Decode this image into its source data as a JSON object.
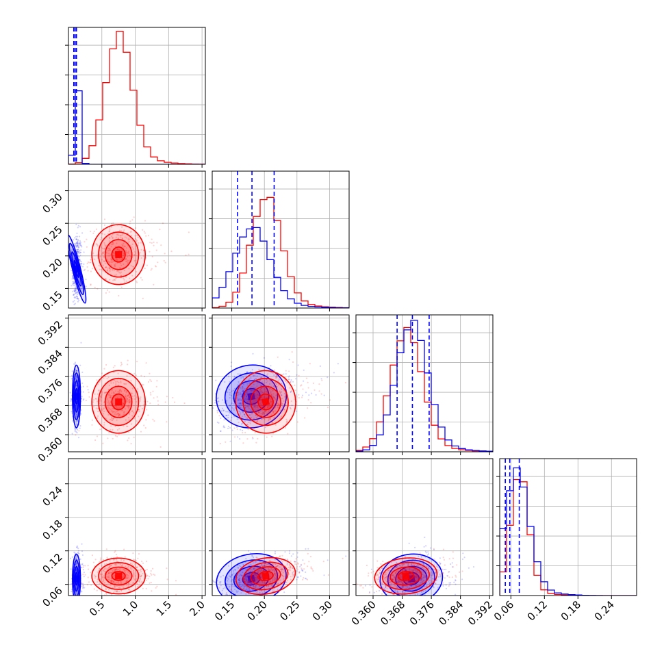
{
  "chart_data": {
    "type": "corner",
    "description_series": [
      {
        "color": "#0000ff"
      },
      {
        "color": "#ff0000"
      }
    ],
    "colors": {
      "blue": "#0000ff",
      "red": "#ff0000",
      "grid": "#b0b0b0"
    },
    "params": [
      {
        "range": [
          0.0,
          2.05
        ],
        "ticks": [
          0.5,
          1.0,
          1.5,
          2.0
        ],
        "tick_labels": [
          "0.5",
          "1.0",
          "1.5",
          "2.0"
        ],
        "blue": {
          "mean": 0.12,
          "sd": 0.03
        },
        "red": {
          "mean": 0.75,
          "sd": 0.2
        },
        "quantiles": [
          0.08,
          0.1,
          0.12
        ]
      },
      {
        "range": [
          0.12,
          0.33
        ],
        "ticks": [
          0.15,
          0.2,
          0.25,
          0.3
        ],
        "tick_labels": [
          "0.15",
          "0.20",
          "0.25",
          "0.30"
        ],
        "blue": {
          "mean": 0.18,
          "sd": 0.027
        },
        "red": {
          "mean": 0.202,
          "sd": 0.023
        },
        "quantiles": [
          0.159,
          0.181,
          0.215
        ]
      },
      {
        "range": [
          0.3553,
          0.3929
        ],
        "ticks": [
          0.36,
          0.368,
          0.376,
          0.384,
          0.392
        ],
        "tick_labels": [
          "0.360",
          "0.368",
          "0.376",
          "0.384",
          "0.392"
        ],
        "blue": {
          "mean": 0.3705,
          "sd": 0.0043
        },
        "red": {
          "mean": 0.369,
          "sd": 0.0043
        },
        "quantiles": [
          0.3666,
          0.3708,
          0.3754
        ]
      },
      {
        "range": [
          0.04,
          0.285
        ],
        "ticks": [
          0.06,
          0.12,
          0.18,
          0.24
        ],
        "tick_labels": [
          "0.06",
          "0.12",
          "0.18",
          "0.24"
        ],
        "blue": {
          "mean": 0.07,
          "sd": 0.022
        },
        "red": {
          "mean": 0.075,
          "sd": 0.016
        },
        "quantiles": [
          0.05,
          0.058,
          0.075
        ]
      }
    ],
    "blue_quantiles_color": "#0000ff",
    "grid": true
  }
}
